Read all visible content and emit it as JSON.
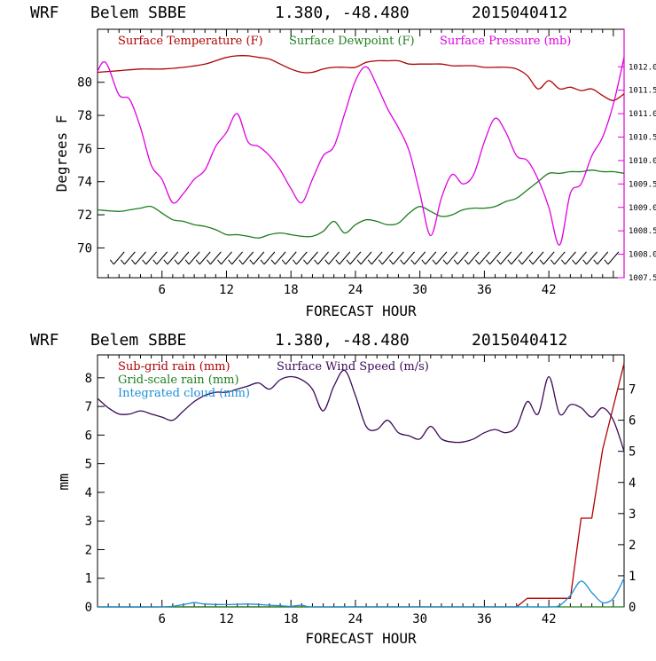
{
  "chart_data": [
    {
      "type": "line",
      "header": {
        "model": "WRF",
        "station": "Belem SBBE",
        "coords": "1.380, -48.480",
        "init": "2015040412"
      },
      "xlabel": "FORECAST HOUR",
      "ylabel": "Degrees F",
      "xlim": [
        0,
        49
      ],
      "xticks": [
        6,
        12,
        18,
        24,
        30,
        36,
        42
      ],
      "ylim": [
        68.2,
        83.2
      ],
      "yticks": [
        70,
        72,
        74,
        76,
        78,
        80
      ],
      "y2lim": [
        1007.5,
        1012.8
      ],
      "y2ticks": [
        "1007.5",
        "1008.0",
        "1008.5",
        "1009.0",
        "1009.5",
        "1010.0",
        "1010.5",
        "1011.0",
        "1011.5",
        "1012.0"
      ],
      "series": [
        {
          "name": "Surface Temperature (F)",
          "color": "#b00000",
          "axis": "left",
          "x": [
            0,
            2,
            4,
            6,
            8,
            10,
            11,
            12,
            13,
            14,
            15,
            16,
            17,
            18,
            19,
            20,
            21,
            22,
            23,
            24,
            25,
            26,
            27,
            28,
            29,
            30,
            31,
            32,
            33,
            34,
            35,
            36,
            37,
            38,
            39,
            40,
            41,
            42,
            43,
            44,
            45,
            46,
            47,
            48,
            49
          ],
          "y": [
            80.6,
            80.7,
            80.8,
            80.8,
            80.9,
            81.1,
            81.3,
            81.5,
            81.6,
            81.6,
            81.5,
            81.4,
            81.1,
            80.8,
            80.6,
            80.6,
            80.8,
            80.9,
            80.9,
            80.9,
            81.2,
            81.3,
            81.3,
            81.3,
            81.1,
            81.1,
            81.1,
            81.1,
            81.0,
            81.0,
            81.0,
            80.9,
            80.9,
            80.9,
            80.8,
            80.4,
            79.6,
            80.1,
            79.6,
            79.7,
            79.5,
            79.6,
            79.2,
            78.9,
            79.3
          ]
        },
        {
          "name": "Surface Dewpoint (F)",
          "color": "#1e7d1e",
          "axis": "left",
          "x": [
            0,
            2,
            3,
            4,
            5,
            6,
            7,
            8,
            9,
            10,
            11,
            12,
            13,
            14,
            15,
            16,
            17,
            18,
            19,
            20,
            21,
            22,
            23,
            24,
            25,
            26,
            27,
            28,
            29,
            30,
            31,
            32,
            33,
            34,
            35,
            36,
            37,
            38,
            39,
            40,
            41,
            42,
            43,
            44,
            45,
            46,
            47,
            48,
            49
          ],
          "y": [
            72.3,
            72.2,
            72.3,
            72.4,
            72.5,
            72.1,
            71.7,
            71.6,
            71.4,
            71.3,
            71.1,
            70.8,
            70.8,
            70.7,
            70.6,
            70.8,
            70.9,
            70.8,
            70.7,
            70.7,
            71.0,
            71.6,
            70.9,
            71.4,
            71.7,
            71.6,
            71.4,
            71.5,
            72.1,
            72.5,
            72.2,
            71.9,
            72.0,
            72.3,
            72.4,
            72.4,
            72.5,
            72.8,
            73.0,
            73.5,
            74.0,
            74.5,
            74.5,
            74.6,
            74.6,
            74.7,
            74.6,
            74.6,
            74.5
          ]
        },
        {
          "name": "Surface Pressure (mb)",
          "color": "#e000e0",
          "axis": "right",
          "x": [
            0,
            0.5,
            1,
            2,
            3,
            4,
            5,
            6,
            7,
            8,
            9,
            10,
            11,
            12,
            13,
            14,
            15,
            16,
            17,
            18,
            19,
            20,
            21,
            22,
            23,
            24,
            25,
            26,
            27,
            28,
            29,
            30,
            31,
            32,
            33,
            34,
            35,
            36,
            37,
            38,
            39,
            40,
            41,
            42,
            43,
            44,
            45,
            46,
            47,
            48,
            49
          ],
          "y": [
            1011.9,
            1012.1,
            1012.0,
            1011.4,
            1011.3,
            1010.7,
            1009.9,
            1009.6,
            1009.1,
            1009.3,
            1009.6,
            1009.8,
            1010.3,
            1010.6,
            1011.0,
            1010.4,
            1010.3,
            1010.1,
            1009.8,
            1009.4,
            1009.1,
            1009.6,
            1010.1,
            1010.3,
            1011.0,
            1011.7,
            1012.0,
            1011.6,
            1011.1,
            1010.7,
            1010.2,
            1009.3,
            1008.4,
            1009.2,
            1009.7,
            1009.5,
            1009.7,
            1010.4,
            1010.9,
            1010.6,
            1010.1,
            1010.0,
            1009.6,
            1009.0,
            1008.2,
            1009.3,
            1009.5,
            1010.1,
            1010.5,
            1011.2,
            1012.2
          ]
        }
      ],
      "wind_barb_row": {
        "value": 69.6,
        "hours": [
          2,
          3,
          4,
          5,
          6,
          7,
          8,
          9,
          10,
          11,
          12,
          13,
          14,
          15,
          16,
          17,
          18,
          19,
          20,
          21,
          22,
          23,
          24,
          25,
          26,
          27,
          28,
          29,
          30,
          31,
          32,
          33,
          34,
          35,
          36,
          37,
          38,
          39,
          40,
          41,
          42,
          43,
          44,
          45,
          46,
          47,
          48
        ]
      },
      "legend": [
        {
          "label": "Surface Temperature (F)",
          "color": "#b00000"
        },
        {
          "label": "Surface Dewpoint (F)",
          "color": "#1e7d1e"
        },
        {
          "label": "Surface Pressure (mb)",
          "color": "#e000e0"
        }
      ]
    },
    {
      "type": "line",
      "header": {
        "model": "WRF",
        "station": "Belem SBBE",
        "coords": "1.380, -48.480",
        "init": "2015040412"
      },
      "xlabel": "FORECAST HOUR",
      "ylabel": "mm",
      "xlim": [
        0,
        49
      ],
      "xticks": [
        6,
        12,
        18,
        24,
        30,
        36,
        42
      ],
      "ylim": [
        0,
        8.8
      ],
      "yticks": [
        0,
        1,
        2,
        3,
        4,
        5,
        6,
        7,
        8
      ],
      "y2lim": [
        0,
        8.1
      ],
      "y2ticks": [
        0,
        1,
        2,
        3,
        4,
        5,
        6,
        7
      ],
      "series": [
        {
          "name": "Sub-grid rain (mm)",
          "color": "#b00000",
          "axis": "left",
          "x": [
            0,
            39,
            40,
            44,
            45,
            46,
            47,
            48,
            49
          ],
          "y": [
            0,
            0,
            0.3,
            0.3,
            3.1,
            3.1,
            5.5,
            7,
            8.5
          ]
        },
        {
          "name": "Grid-scale rain (mm)",
          "color": "#1e7d1e",
          "axis": "left",
          "x": [
            0,
            49
          ],
          "y": [
            0,
            0
          ]
        },
        {
          "name": "Integrated cloud (mm)",
          "color": "#1a8fd8",
          "axis": "left",
          "x": [
            0,
            6,
            8,
            9,
            10,
            12,
            14,
            16,
            17,
            18,
            19,
            20,
            24,
            30,
            36,
            40,
            42,
            43,
            44,
            45,
            46,
            47,
            48,
            49
          ],
          "y": [
            0,
            0,
            0.08,
            0.15,
            0.1,
            0.08,
            0.1,
            0.06,
            0.04,
            0.02,
            0.06,
            0,
            0,
            0,
            0,
            0,
            0,
            0.05,
            0.4,
            0.9,
            0.5,
            0.15,
            0.3,
            1.0
          ]
        },
        {
          "name": "Surface Wind Speed (m/s)",
          "color": "#3b0a5a",
          "axis": "right",
          "x": [
            0,
            1,
            2,
            3,
            4,
            5,
            6,
            7,
            8,
            9,
            10,
            11,
            12,
            13,
            14,
            15,
            16,
            17,
            18,
            19,
            20,
            21,
            22,
            23,
            24,
            25,
            26,
            27,
            28,
            29,
            30,
            31,
            32,
            33,
            34,
            35,
            36,
            37,
            38,
            39,
            40,
            41,
            42,
            43,
            44,
            45,
            46,
            47,
            48,
            49
          ],
          "y": [
            6.7,
            6.4,
            6.2,
            6.2,
            6.3,
            6.2,
            6.1,
            6.0,
            6.3,
            6.6,
            6.8,
            6.9,
            6.9,
            7.0,
            7.1,
            7.2,
            7.0,
            7.3,
            7.4,
            7.3,
            7.0,
            6.3,
            7.1,
            7.6,
            6.8,
            5.8,
            5.7,
            6.0,
            5.6,
            5.5,
            5.4,
            5.8,
            5.4,
            5.3,
            5.3,
            5.4,
            5.6,
            5.7,
            5.6,
            5.8,
            6.6,
            6.2,
            7.4,
            6.2,
            6.5,
            6.4,
            6.1,
            6.4,
            6.0,
            5.0
          ]
        }
      ],
      "legend": [
        {
          "label": "Sub-grid rain (mm)",
          "color": "#b00000"
        },
        {
          "label": "Surface Wind Speed (m/s)",
          "color": "#3b0a5a"
        },
        {
          "label": "Grid-scale rain (mm)",
          "color": "#1e7d1e"
        },
        {
          "label": "Integrated cloud (mm)",
          "color": "#1a8fd8"
        }
      ]
    }
  ]
}
